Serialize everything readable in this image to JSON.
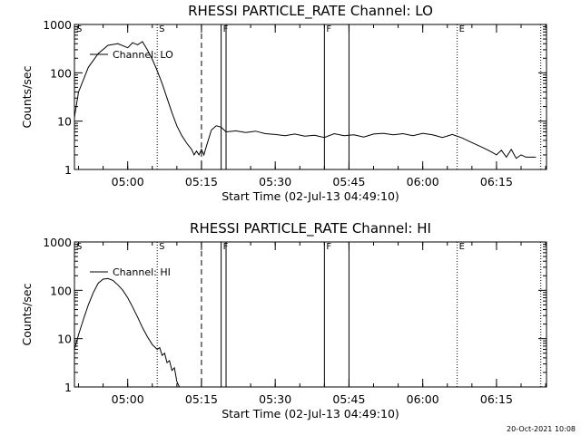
{
  "footer": {
    "timestamp": "20-Oct-2021 10:08"
  },
  "chart_data": [
    {
      "type": "line",
      "title": "RHESSI PARTICLE_RATE Channel: LO",
      "xlabel": "Start Time (02-Jul-13 04:49:10)",
      "ylabel": "Counts/sec",
      "yscale": "log",
      "ylim": [
        1,
        1000
      ],
      "xlim": [
        "04:49:10",
        "06:25:10"
      ],
      "x_ticks": [
        "05:00",
        "05:15",
        "05:30",
        "05:45",
        "06:00",
        "06:15"
      ],
      "y_ticks": [
        "1",
        "10",
        "100",
        "1000"
      ],
      "legend": "top-left",
      "series": [
        {
          "name": "Channel: LO",
          "x": [
            "04:49:10",
            "04:50:00",
            "04:52:00",
            "04:54:00",
            "04:56:00",
            "04:58:00",
            "05:00:00",
            "05:01:00",
            "05:02:00",
            "05:03:00",
            "05:04:00",
            "05:05:00",
            "05:06:00",
            "05:07:00",
            "05:08:00",
            "05:09:00",
            "05:10:00",
            "05:11:00",
            "05:12:00",
            "05:13:00",
            "05:13:30",
            "05:14:00",
            "05:14:30",
            "05:15:00",
            "05:15:30",
            "05:16:00",
            "05:17:00",
            "05:18:00",
            "05:19:00",
            "05:20:00",
            "05:22:00",
            "05:24:00",
            "05:26:00",
            "05:28:00",
            "05:30:00",
            "05:32:00",
            "05:34:00",
            "05:36:00",
            "05:38:00",
            "05:40:00",
            "05:42:00",
            "05:44:00",
            "05:46:00",
            "05:48:00",
            "05:50:00",
            "05:52:00",
            "05:54:00",
            "05:56:00",
            "05:58:00",
            "06:00:00",
            "06:02:00",
            "06:04:00",
            "06:06:00",
            "06:08:00",
            "06:10:00",
            "06:12:00",
            "06:13:00",
            "06:14:00",
            "06:15:00",
            "06:16:00",
            "06:17:00",
            "06:18:00",
            "06:19:00",
            "06:20:00",
            "06:21:00",
            "06:23:00"
          ],
          "y": [
            12,
            40,
            130,
            250,
            370,
            400,
            330,
            420,
            380,
            440,
            300,
            190,
            110,
            60,
            30,
            15,
            8,
            5,
            3.5,
            2.6,
            2.0,
            2.4,
            2.0,
            2.6,
            2.0,
            3.0,
            6.5,
            8.0,
            7.5,
            6.0,
            6.3,
            5.8,
            6.2,
            5.5,
            5.3,
            5.0,
            5.4,
            4.9,
            5.1,
            4.6,
            5.5,
            5.0,
            5.2,
            4.7,
            5.4,
            5.6,
            5.2,
            5.5,
            5.0,
            5.6,
            5.2,
            4.6,
            5.3,
            4.5,
            3.6,
            2.9,
            2.6,
            2.3,
            2.0,
            2.5,
            1.8,
            2.6,
            1.7,
            2.0,
            1.8,
            1.8
          ]
        }
      ],
      "vlines": [
        {
          "x": "05:06:00",
          "style": "dotted",
          "label": "S"
        },
        {
          "x": "05:15:00",
          "style": "dashed",
          "label": ""
        },
        {
          "x": "05:19:00",
          "style": "solid",
          "label": "F"
        },
        {
          "x": "05:20:00",
          "style": "solid",
          "label": ""
        },
        {
          "x": "05:40:00",
          "style": "solid",
          "label": "F"
        },
        {
          "x": "05:45:00",
          "style": "solid",
          "label": ""
        },
        {
          "x": "06:07:00",
          "style": "dotted",
          "label": "E"
        },
        {
          "x": "06:24:00",
          "style": "dotted",
          "label": ""
        }
      ],
      "corner_flag": "S"
    },
    {
      "type": "line",
      "title": "RHESSI PARTICLE_RATE Channel: HI",
      "xlabel": "Start Time (02-Jul-13 04:49:10)",
      "ylabel": "Counts/sec",
      "yscale": "log",
      "ylim": [
        1,
        1000
      ],
      "xlim": [
        "04:49:10",
        "06:25:10"
      ],
      "x_ticks": [
        "05:00",
        "05:15",
        "05:30",
        "05:45",
        "06:00",
        "06:15"
      ],
      "y_ticks": [
        "1",
        "10",
        "100",
        "1000"
      ],
      "legend": "top-left",
      "series": [
        {
          "name": "Channel: HI",
          "x": [
            "04:49:10",
            "04:50:00",
            "04:51:00",
            "04:52:00",
            "04:53:00",
            "04:54:00",
            "04:55:00",
            "04:56:00",
            "04:57:00",
            "04:58:00",
            "04:59:00",
            "05:00:00",
            "05:01:00",
            "05:02:00",
            "05:03:00",
            "05:04:00",
            "05:05:00",
            "05:06:00",
            "05:06:30",
            "05:07:00",
            "05:07:30",
            "05:08:00",
            "05:08:30",
            "05:09:00",
            "05:09:30",
            "05:10:00",
            "05:10:30"
          ],
          "y": [
            6,
            12,
            25,
            50,
            90,
            140,
            170,
            175,
            160,
            130,
            100,
            70,
            45,
            28,
            17,
            11,
            7.5,
            6,
            6.5,
            4.5,
            5,
            3.2,
            3.5,
            2.2,
            2.5,
            1.3,
            1.0
          ]
        }
      ],
      "vlines": [
        {
          "x": "05:06:00",
          "style": "dotted",
          "label": "S"
        },
        {
          "x": "05:15:00",
          "style": "dashed",
          "label": ""
        },
        {
          "x": "05:19:00",
          "style": "solid",
          "label": "F"
        },
        {
          "x": "05:20:00",
          "style": "solid",
          "label": ""
        },
        {
          "x": "05:40:00",
          "style": "solid",
          "label": "F"
        },
        {
          "x": "05:45:00",
          "style": "solid",
          "label": ""
        },
        {
          "x": "06:07:00",
          "style": "dotted",
          "label": "E"
        },
        {
          "x": "06:24:00",
          "style": "dotted",
          "label": ""
        }
      ],
      "corner_flag": "S"
    }
  ]
}
